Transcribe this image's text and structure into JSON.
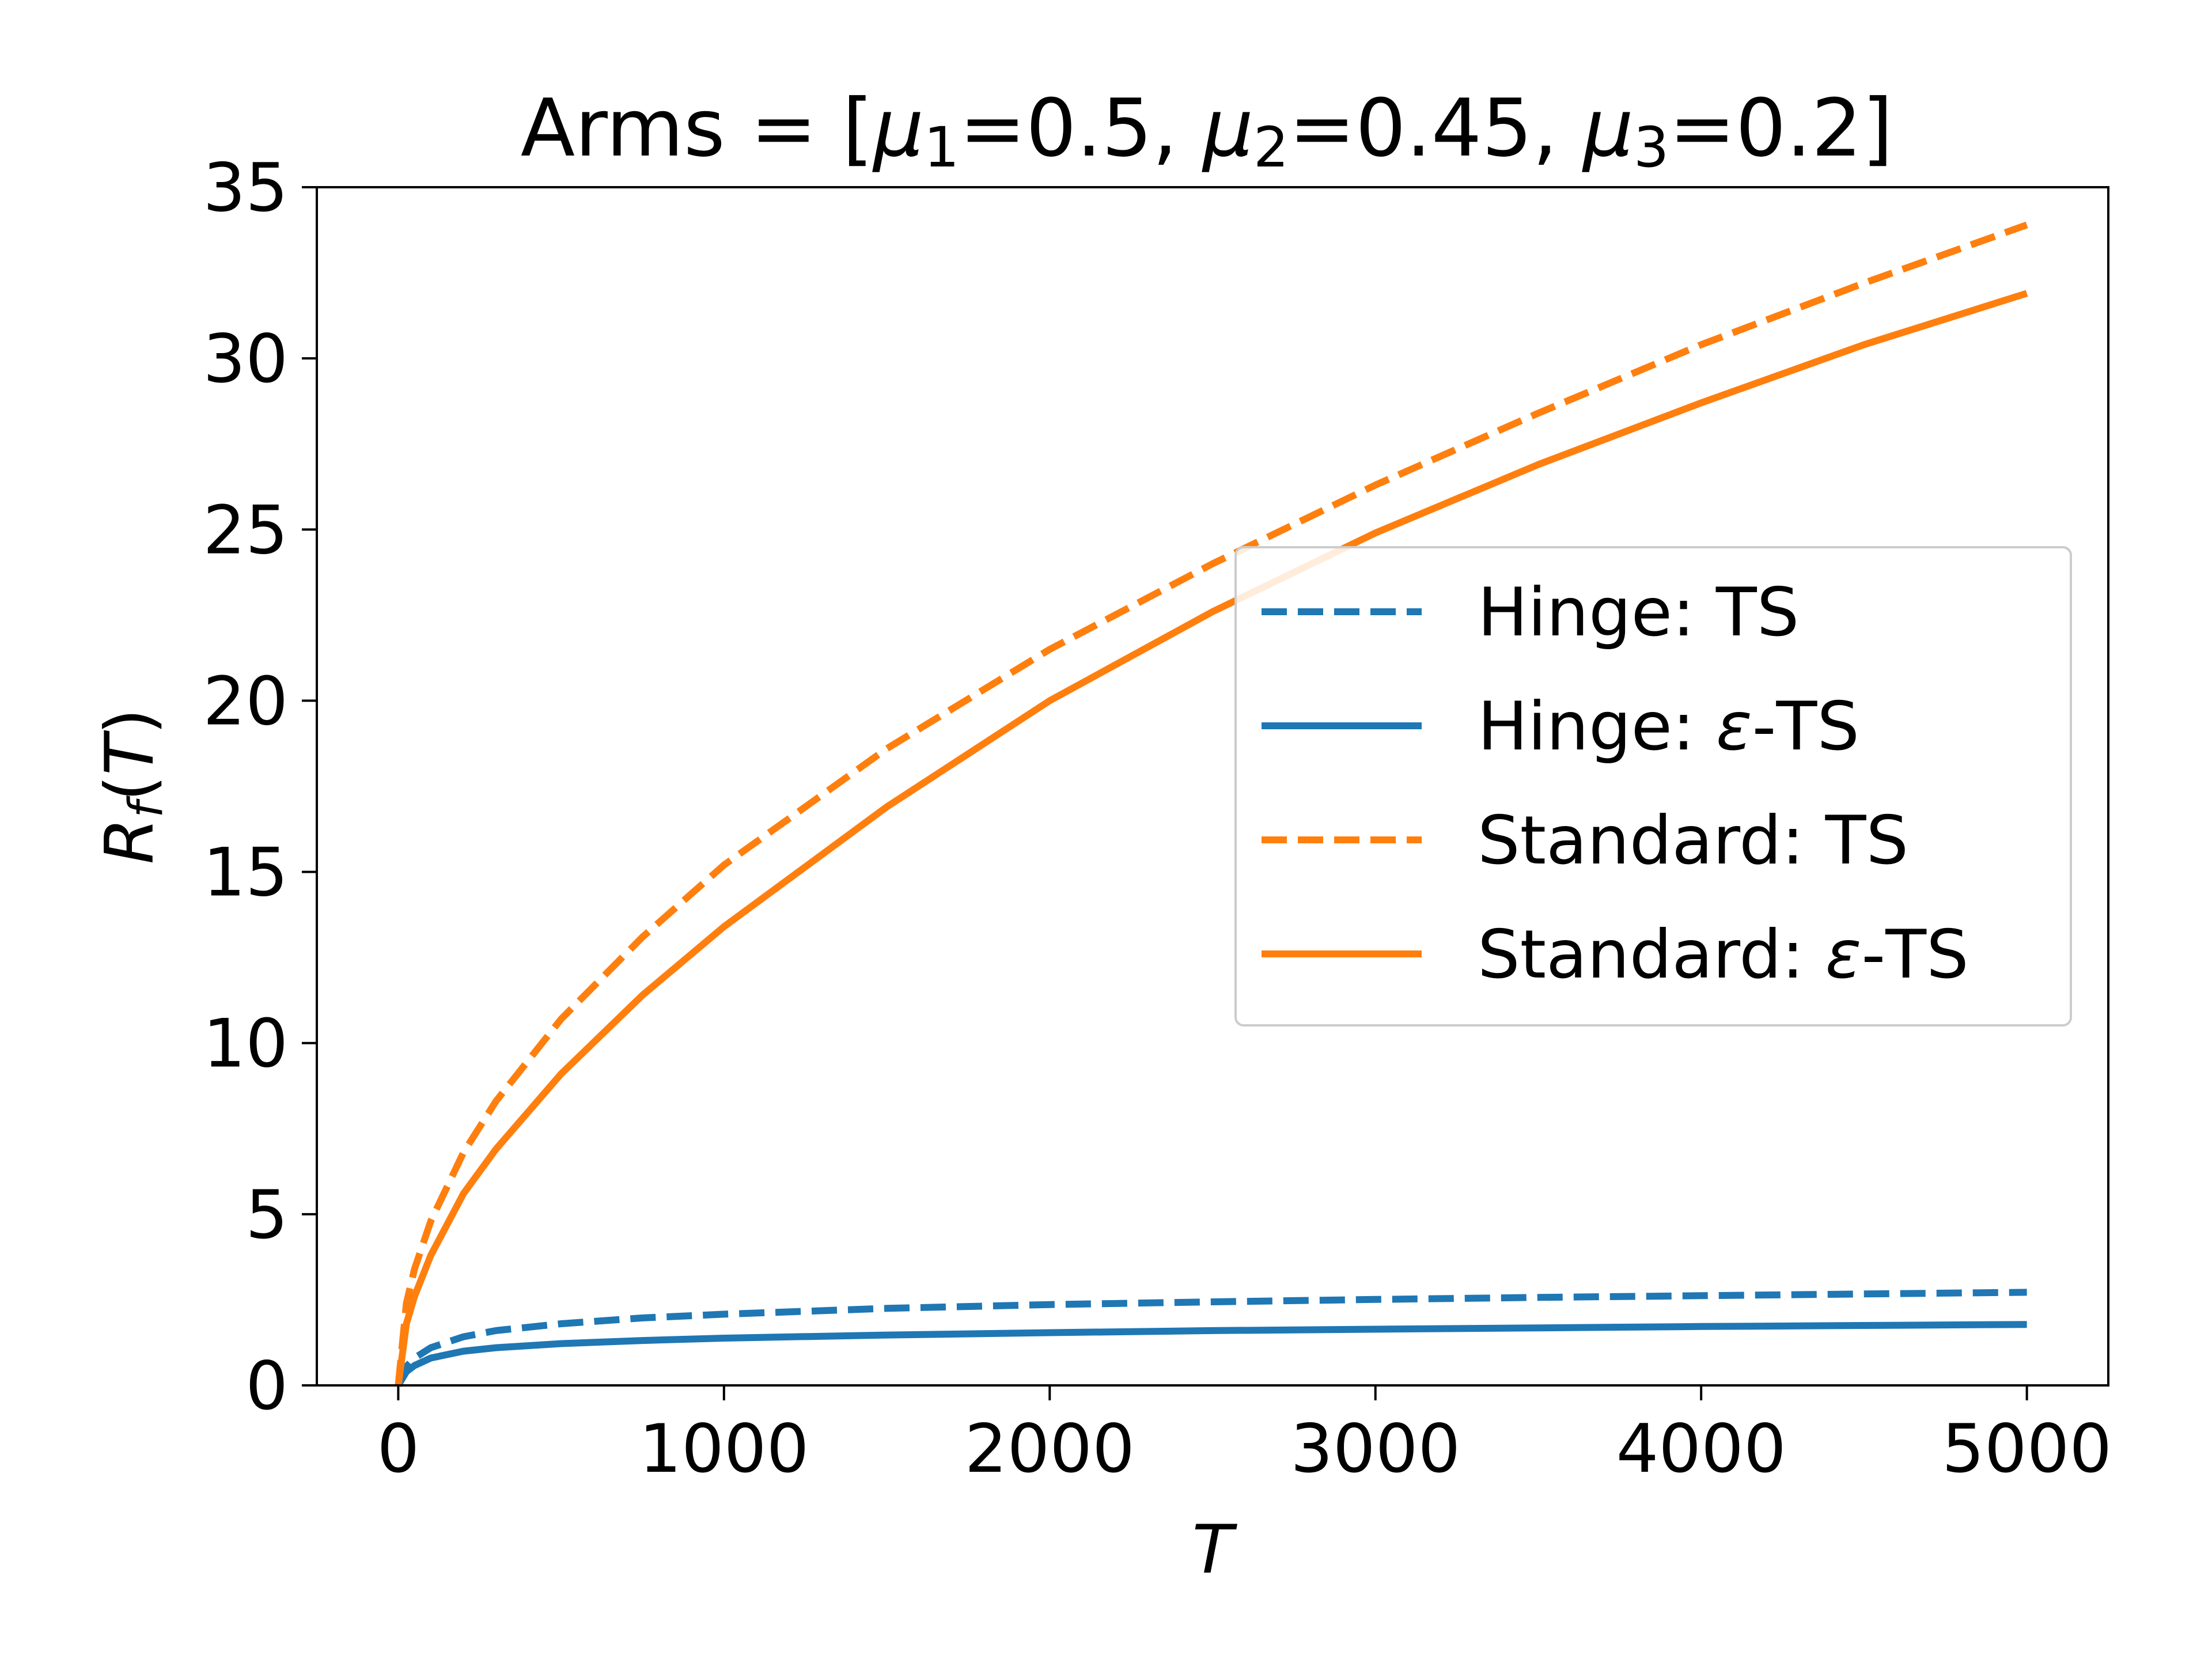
{
  "chart_data": {
    "type": "line",
    "title": "Arms = [μ₁=0.5, μ₂=0.45, μ₃=0.2]",
    "title_parts": [
      "Arms = [",
      "μ",
      "1",
      "=0.5, ",
      "μ",
      "2",
      "=0.45, ",
      "μ",
      "3",
      "=0.2]"
    ],
    "xlabel": "T",
    "ylabel": "R_f(T)",
    "ylabel_parts": [
      "R",
      "f",
      "(",
      "T",
      ")"
    ],
    "xlim": [
      -250,
      5250
    ],
    "ylim": [
      0,
      35
    ],
    "xticks": [
      0,
      1000,
      2000,
      3000,
      4000,
      5000
    ],
    "xtick_labels": [
      "0",
      "1000",
      "2000",
      "3000",
      "4000",
      "5000"
    ],
    "yticks": [
      0,
      5,
      10,
      15,
      20,
      25,
      30,
      35
    ],
    "ytick_labels": [
      "0",
      "5",
      "10",
      "15",
      "20",
      "25",
      "30",
      "35"
    ],
    "grid": false,
    "legend_position": "center-right",
    "x": [
      0,
      25,
      50,
      100,
      200,
      300,
      500,
      750,
      1000,
      1500,
      2000,
      2500,
      3000,
      3500,
      4000,
      4500,
      5000
    ],
    "series": [
      {
        "name": "Hinge: TS",
        "legend_parts": [
          "Hinge: TS"
        ],
        "color": "#1f77b4",
        "style": "dashed",
        "values": [
          0,
          0.55,
          0.8,
          1.1,
          1.42,
          1.6,
          1.8,
          1.97,
          2.08,
          2.25,
          2.36,
          2.44,
          2.51,
          2.57,
          2.62,
          2.67,
          2.72
        ]
      },
      {
        "name": "Hinge: ε-TS",
        "legend_parts": [
          "Hinge: ",
          "ε",
          "-TS"
        ],
        "color": "#1f77b4",
        "style": "solid",
        "values": [
          0,
          0.4,
          0.58,
          0.8,
          1.0,
          1.1,
          1.22,
          1.31,
          1.38,
          1.47,
          1.54,
          1.6,
          1.64,
          1.68,
          1.72,
          1.75,
          1.78
        ]
      },
      {
        "name": "Standard: TS",
        "legend_parts": [
          "Standard: TS"
        ],
        "color": "#ff7f0e",
        "style": "dashed",
        "values": [
          0,
          2.4,
          3.4,
          4.8,
          6.8,
          8.3,
          10.7,
          13.1,
          15.2,
          18.6,
          21.5,
          24.0,
          26.3,
          28.4,
          30.4,
          32.2,
          33.9
        ]
      },
      {
        "name": "Standard: ε-TS",
        "legend_parts": [
          "Standard: ",
          "ε",
          "-TS"
        ],
        "color": "#ff7f0e",
        "style": "solid",
        "values": [
          0,
          1.8,
          2.6,
          3.8,
          5.6,
          6.9,
          9.1,
          11.4,
          13.4,
          16.9,
          20.0,
          22.6,
          24.9,
          26.9,
          28.7,
          30.4,
          31.9
        ]
      }
    ]
  }
}
